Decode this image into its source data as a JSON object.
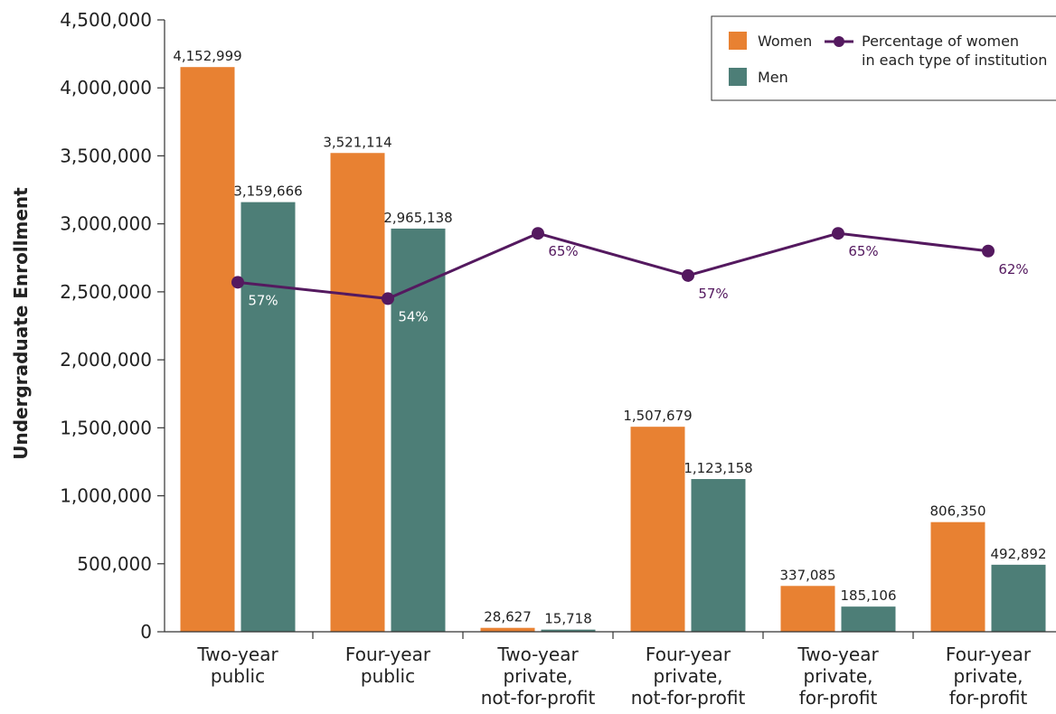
{
  "chart_data": {
    "type": "bar",
    "ylabel": "Undergraduate Enrollment",
    "ylim": [
      0,
      4500000
    ],
    "yticks": [
      "0",
      "500,000",
      "1,000,000",
      "1,500,000",
      "2,000,000",
      "2,500,000",
      "3,000,000",
      "3,500,000",
      "4,000,000",
      "4,500,000"
    ],
    "categories": [
      [
        "Two-year",
        "public"
      ],
      [
        "Four-year",
        "public"
      ],
      [
        "Two-year",
        "private,",
        "not-for-profit"
      ],
      [
        "Four-year",
        "private,",
        "not-for-profit"
      ],
      [
        "Two-year",
        "private,",
        "for-profit"
      ],
      [
        "Four-year",
        "private,",
        "for-profit"
      ]
    ],
    "series": [
      {
        "name": "Women",
        "color": "#E88132",
        "values": [
          4152999,
          3521114,
          28627,
          1507679,
          337085,
          806350
        ],
        "labels": [
          "4,152,999",
          "3,521,114",
          "28,627",
          "1,507,679",
          "337,085",
          "806,350"
        ]
      },
      {
        "name": "Men",
        "color": "#4D7E77",
        "values": [
          3159666,
          2965138,
          15718,
          1123158,
          185106,
          492892
        ],
        "labels": [
          "3,159,666",
          "2,965,138",
          "15,718",
          "1,123,158",
          "185,106",
          "492,892"
        ]
      }
    ],
    "line_series": {
      "name": "Percentage of women in each type of institution",
      "name_lines": [
        "Percentage of women",
        "in each type of institution"
      ],
      "color": "#54195F",
      "percent_values": [
        57,
        54,
        65,
        57,
        65,
        62
      ],
      "labels": [
        "57%",
        "54%",
        "65%",
        "57%",
        "65%",
        "62%"
      ],
      "plotted_at_enrollment_level": [
        2570000,
        2450000,
        2930000,
        2620000,
        2930000,
        2800000
      ]
    },
    "legend_position": "top-right",
    "grid": false
  }
}
